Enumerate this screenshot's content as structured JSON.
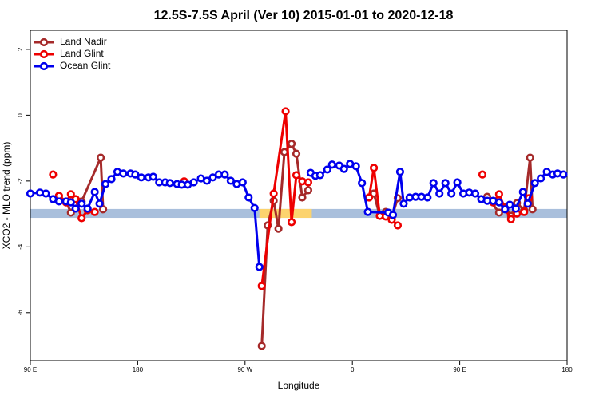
{
  "chart_data": {
    "type": "line",
    "title": "12.5S-7.5S April (Ver 10)   2015-01-01 to 2020-12-18",
    "x_label": "Longitude",
    "y_label": "XCO2 - MLO trend (ppm)",
    "xlim": [
      90,
      540
    ],
    "xticks": [
      {
        "value": 90,
        "label": "90 E"
      },
      180,
      {
        "value": 270,
        "label": "90 W"
      },
      {
        "value": 360,
        "label": "0"
      },
      {
        "value": 450,
        "label": "90 E"
      },
      {
        "value": 540,
        "label": "180"
      }
    ],
    "ylim": [
      -7.46,
      2.58
    ],
    "yticks": [
      2,
      0,
      -2,
      -4,
      -6
    ],
    "legend": "top-left",
    "bands": [
      {
        "color": "#a9bfdc",
        "xlim": [
          90,
          540
        ],
        "ylim": [
          -3.12,
          -2.85
        ]
      },
      {
        "color": "#fcd36e",
        "xlim": [
          282,
          326
        ],
        "ylim": [
          -3.12,
          -2.85
        ]
      }
    ],
    "series": [
      {
        "name": "Land Nadir",
        "color": "#a52a2a",
        "x": [
          114,
          120,
          124,
          133,
          149,
          151,
          null,
          284,
          289,
          294,
          298,
          303,
          309,
          313,
          318,
          323,
          null,
          374,
          378,
          383,
          388,
          393,
          398,
          null,
          473,
          483,
          488,
          493,
          498,
          504,
          509,
          511
        ],
        "values": [
          -2.45,
          -2.62,
          -2.96,
          -2.62,
          -1.29,
          -2.86,
          null,
          -7.01,
          -3.35,
          -2.6,
          -3.45,
          -1.12,
          -0.87,
          -1.17,
          -2.5,
          -2.28,
          null,
          -2.5,
          -2.38,
          -3.06,
          -2.94,
          -3.11,
          -2.52,
          null,
          -2.48,
          -2.96,
          -2.79,
          -3.06,
          -2.67,
          -2.89,
          -1.29,
          -2.86
        ]
      },
      {
        "name": "Land Glint",
        "color": "#ee0000",
        "x": [
          109,
          null,
          114,
          120,
          124,
          128,
          133,
          138,
          144,
          null,
          219,
          null,
          284,
          294,
          304,
          309,
          313,
          318,
          323,
          null,
          374,
          378,
          383,
          388,
          393,
          398,
          null,
          469,
          null,
          478,
          483,
          488,
          493,
          498,
          504,
          508
        ],
        "values": [
          -1.8,
          null,
          -2.45,
          -2.65,
          -2.4,
          -2.55,
          -3.13,
          -2.89,
          -2.94,
          null,
          -2.01,
          null,
          -5.19,
          -2.38,
          0.12,
          -3.25,
          -1.82,
          -2.01,
          -2.04,
          null,
          -2.5,
          -1.6,
          -3.06,
          -3.08,
          -3.18,
          -3.35,
          null,
          -1.8,
          null,
          -2.65,
          -2.4,
          -2.84,
          -3.16,
          -2.99,
          -2.94,
          -2.52
        ]
      },
      {
        "name": "Ocean Glint",
        "color": "#0000ee",
        "x": [
          90,
          98,
          103,
          109,
          114,
          120,
          124,
          128,
          133,
          138,
          144,
          148,
          153,
          158,
          163,
          168,
          174,
          178,
          183,
          189,
          193,
          198,
          203,
          207,
          213,
          217,
          222,
          227,
          233,
          238,
          243,
          248,
          253,
          258,
          263,
          268,
          273,
          278,
          282,
          null,
          325,
          329,
          333,
          339,
          343,
          349,
          353,
          358,
          363,
          368,
          373,
          390,
          394,
          400,
          403,
          408,
          413,
          418,
          423,
          428,
          433,
          438,
          443,
          448,
          453,
          458,
          463,
          468,
          473,
          478,
          483,
          488,
          492,
          497,
          503,
          507,
          513,
          518,
          523,
          528,
          532,
          537
        ],
        "values": [
          -2.38,
          -2.35,
          -2.38,
          -2.55,
          -2.62,
          -2.62,
          -2.65,
          -2.84,
          -2.69,
          -2.84,
          -2.33,
          -2.69,
          -2.09,
          -1.94,
          -1.72,
          -1.77,
          -1.77,
          -1.8,
          -1.89,
          -1.89,
          -1.87,
          -2.04,
          -2.04,
          -2.06,
          -2.09,
          -2.11,
          -2.11,
          -2.04,
          -1.92,
          -1.99,
          -1.89,
          -1.8,
          -1.8,
          -1.99,
          -2.09,
          -2.04,
          -2.5,
          -2.82,
          -4.61,
          null,
          -1.75,
          -1.84,
          -1.82,
          -1.65,
          -1.5,
          -1.53,
          -1.63,
          -1.48,
          -1.55,
          -2.06,
          -2.94,
          -2.96,
          -3.03,
          -1.72,
          -2.69,
          -2.5,
          -2.48,
          -2.48,
          -2.5,
          -2.06,
          -2.38,
          -2.06,
          -2.38,
          -2.04,
          -2.38,
          -2.35,
          -2.38,
          -2.55,
          -2.6,
          -2.6,
          -2.65,
          -2.86,
          -2.72,
          -2.84,
          -2.33,
          -2.69,
          -2.06,
          -1.92,
          -1.72,
          -1.8,
          -1.77,
          -1.8
        ]
      }
    ]
  }
}
